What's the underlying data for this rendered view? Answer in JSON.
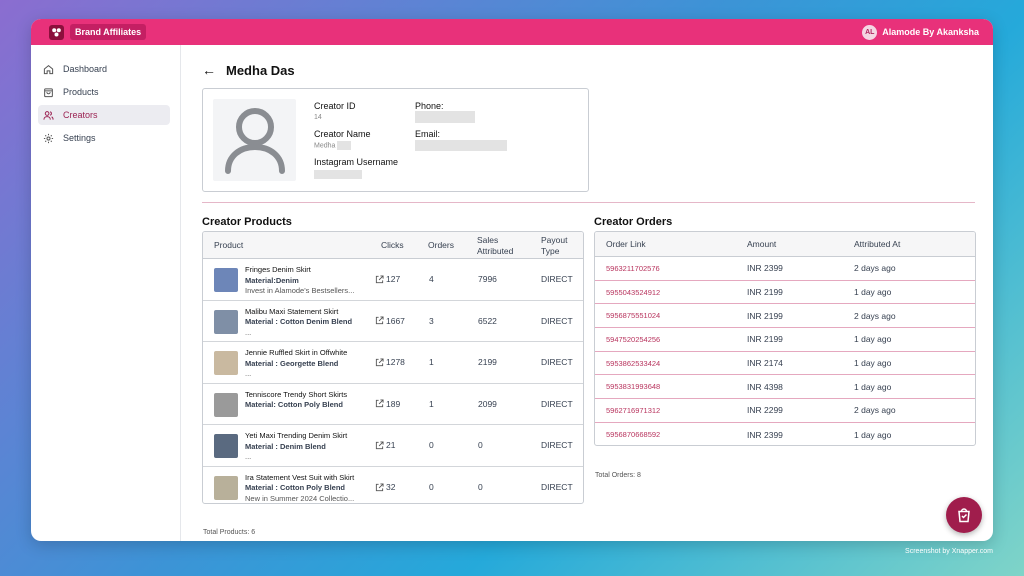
{
  "app": {
    "brand": "Brand Affiliates",
    "user_initials": "AL",
    "user_name": "Alamode By Akanksha"
  },
  "sidebar": {
    "items": [
      {
        "label": "Dashboard",
        "icon": "home-icon"
      },
      {
        "label": "Products",
        "icon": "bag-icon"
      },
      {
        "label": "Creators",
        "icon": "users-icon",
        "active": true
      },
      {
        "label": "Settings",
        "icon": "gear-icon"
      }
    ]
  },
  "page": {
    "title": "Medha Das"
  },
  "profile": {
    "creator_id_label": "Creator ID",
    "creator_id": "14",
    "creator_name_label": "Creator Name",
    "creator_name": "Medha",
    "instagram_label": "Instagram Username",
    "phone_label": "Phone:",
    "email_label": "Email:"
  },
  "products": {
    "title": "Creator Products",
    "headers": {
      "product": "Product",
      "clicks": "Clicks",
      "orders": "Orders",
      "sales": "Sales Attributed",
      "payout": "Payout Type"
    },
    "rows": [
      {
        "name": "Fringes Denim Skirt",
        "material": "Material:Denim",
        "desc": "Invest in Alamode's Bestsellers...",
        "clicks": "127",
        "orders": "4",
        "sales": "7996",
        "payout": "DIRECT",
        "thumb": "#6d86b8"
      },
      {
        "name": "Malibu Maxi Statement Skirt",
        "material": "Material : Cotton Denim Blend",
        "desc": "...",
        "clicks": "1667",
        "orders": "3",
        "sales": "6522",
        "payout": "DIRECT",
        "thumb": "#7f8fa6"
      },
      {
        "name": "Jennie Ruffled Skirt in Offwhite",
        "material": "Material : Georgette Blend",
        "desc": "...",
        "clicks": "1278",
        "orders": "1",
        "sales": "2199",
        "payout": "DIRECT",
        "thumb": "#c9b9a0"
      },
      {
        "name": "Tenniscore Trendy Short Skirts",
        "material": "Material: Cotton Poly Blend",
        "desc": "",
        "clicks": "189",
        "orders": "1",
        "sales": "2099",
        "payout": "DIRECT",
        "thumb": "#9a9a9a"
      },
      {
        "name": "Yeti Maxi Trending Denim Skirt",
        "material": "Material : Denim Blend",
        "desc": "...",
        "clicks": "21",
        "orders": "0",
        "sales": "0",
        "payout": "DIRECT",
        "thumb": "#5a6a80"
      },
      {
        "name": "Ira Statement Vest Suit with Skirt",
        "material": "Material : Cotton Poly Blend",
        "desc": "New in Summer 2024 Collectio...",
        "clicks": "32",
        "orders": "0",
        "sales": "0",
        "payout": "DIRECT",
        "thumb": "#b8b09a"
      }
    ],
    "total": "Total Products: 6"
  },
  "orders": {
    "title": "Creator Orders",
    "headers": {
      "link": "Order Link",
      "amount": "Amount",
      "attributed": "Attributed At"
    },
    "rows": [
      {
        "link": "5963211702576",
        "amount": "INR 2399",
        "at": "2 days ago"
      },
      {
        "link": "5955043524912",
        "amount": "INR 2199",
        "at": "1 day ago"
      },
      {
        "link": "5956875551024",
        "amount": "INR 2199",
        "at": "2 days ago"
      },
      {
        "link": "5947520254256",
        "amount": "INR 2199",
        "at": "1 day ago"
      },
      {
        "link": "5953862533424",
        "amount": "INR 2174",
        "at": "1 day ago"
      },
      {
        "link": "5953831993648",
        "amount": "INR 4398",
        "at": "1 day ago"
      },
      {
        "link": "5962716971312",
        "amount": "INR 2299",
        "at": "2 days ago"
      },
      {
        "link": "5956870668592",
        "amount": "INR 2399",
        "at": "1 day ago"
      }
    ],
    "total": "Total Orders: 8"
  },
  "credit": "Screenshot by Xnapper.com",
  "colors": {
    "accent": "#e8317a",
    "dark_accent": "#a01d4c",
    "link": "#b8345e"
  }
}
